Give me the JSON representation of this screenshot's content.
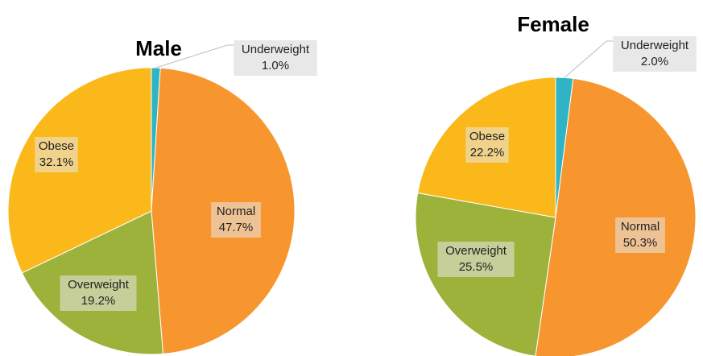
{
  "chart_data": [
    {
      "type": "pie",
      "title": "Male",
      "categories": [
        "Underweight",
        "Normal",
        "Overweight",
        "Obese"
      ],
      "values": [
        1.0,
        47.7,
        19.2,
        32.1
      ],
      "value_labels": [
        "1.0%",
        "47.7%",
        "19.2%",
        "32.1%"
      ],
      "colors": [
        "#2fb4c6",
        "#f7962f",
        "#9db23b",
        "#fbb81a"
      ]
    },
    {
      "type": "pie",
      "title": "Female",
      "categories": [
        "Underweight",
        "Normal",
        "Overweight",
        "Obese"
      ],
      "values": [
        2.0,
        50.3,
        25.5,
        22.2
      ],
      "value_labels": [
        "2.0%",
        "50.3%",
        "25.5%",
        "22.2%"
      ],
      "colors": [
        "#2fb4c6",
        "#f7962f",
        "#9db23b",
        "#fbb81a"
      ]
    }
  ]
}
